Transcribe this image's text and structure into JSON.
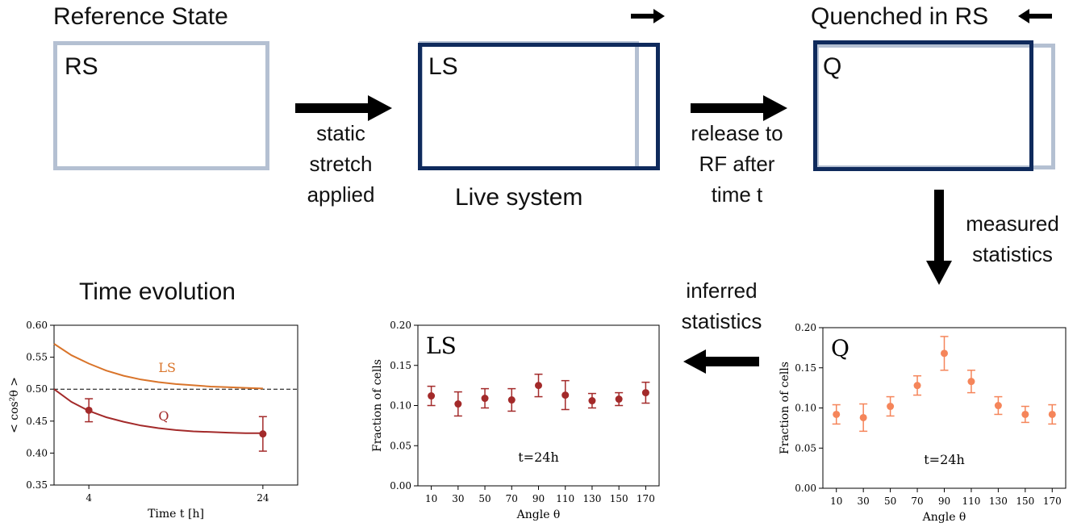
{
  "titles": {
    "reference": "Reference State",
    "quenched": "Quenched in RS",
    "time_evolution": "Time evolution"
  },
  "boxes": {
    "rs": "RS",
    "ls": "LS",
    "q": "Q",
    "live_caption": "Live system"
  },
  "arrows": {
    "stretch": [
      "static",
      "stretch",
      "applied"
    ],
    "release": [
      "release to",
      "RF after",
      "time t"
    ],
    "measured": [
      "measured",
      "statistics"
    ],
    "inferred": [
      "inferred",
      "statistics"
    ]
  },
  "colors": {
    "ghost_box": "#b4c0d2",
    "live_box": "#0f2a5c",
    "q_series": "#a32a2a",
    "ls_series": "#d9742a",
    "q_points": "#f5855a"
  },
  "chart_data": [
    {
      "id": "time-evolution",
      "type": "line",
      "xlabel": "Time t [h]",
      "ylabel": "< cos²θ >",
      "xlim": [
        0,
        28
      ],
      "ylim": [
        0.35,
        0.6
      ],
      "xticks": [
        4,
        24
      ],
      "yticks": [
        "0.35",
        "0.40",
        "0.45",
        "0.50",
        "0.55",
        "0.60"
      ],
      "reference_line": 0.5,
      "series": [
        {
          "name": "LS",
          "x": [
            0,
            2,
            4,
            6,
            8,
            10,
            12,
            14,
            16,
            18,
            20,
            22,
            24
          ],
          "y": [
            0.571,
            0.553,
            0.54,
            0.529,
            0.521,
            0.515,
            0.511,
            0.508,
            0.506,
            0.504,
            0.503,
            0.502,
            0.501
          ]
        },
        {
          "name": "Q",
          "x": [
            0,
            2,
            4,
            6,
            8,
            10,
            12,
            14,
            16,
            18,
            20,
            22,
            24
          ],
          "y": [
            0.5,
            0.48,
            0.466,
            0.456,
            0.449,
            0.443,
            0.439,
            0.436,
            0.434,
            0.433,
            0.432,
            0.431,
            0.431
          ]
        }
      ],
      "points": [
        {
          "x": 4,
          "y": 0.467,
          "err": 0.018
        },
        {
          "x": 24,
          "y": 0.43,
          "err": 0.027
        }
      ]
    },
    {
      "id": "ls-fraction",
      "type": "scatter",
      "label": "LS",
      "annotation": "t=24h",
      "xlabel": "Angle θ",
      "ylabel": "Fraction of cells",
      "ylim": [
        0,
        0.2
      ],
      "yticks": [
        "0.00",
        "0.05",
        "0.10",
        "0.15",
        "0.20"
      ],
      "categories": [
        "10",
        "30",
        "50",
        "70",
        "90",
        "110",
        "130",
        "150",
        "170"
      ],
      "values": [
        0.112,
        0.102,
        0.109,
        0.107,
        0.125,
        0.113,
        0.106,
        0.108,
        0.116
      ],
      "errors": [
        0.012,
        0.015,
        0.012,
        0.014,
        0.014,
        0.018,
        0.009,
        0.008,
        0.013
      ]
    },
    {
      "id": "q-fraction",
      "type": "scatter",
      "label": "Q",
      "annotation": "t=24h",
      "xlabel": "Angle θ",
      "ylabel": "Fraction of cells",
      "ylim": [
        0,
        0.2
      ],
      "yticks": [
        "0.00",
        "0.05",
        "0.10",
        "0.15",
        "0.20"
      ],
      "categories": [
        "10",
        "30",
        "50",
        "70",
        "90",
        "110",
        "130",
        "150",
        "170"
      ],
      "values": [
        0.092,
        0.088,
        0.102,
        0.128,
        0.168,
        0.133,
        0.103,
        0.092,
        0.092
      ],
      "errors": [
        0.012,
        0.017,
        0.012,
        0.012,
        0.021,
        0.014,
        0.011,
        0.01,
        0.012
      ]
    }
  ]
}
